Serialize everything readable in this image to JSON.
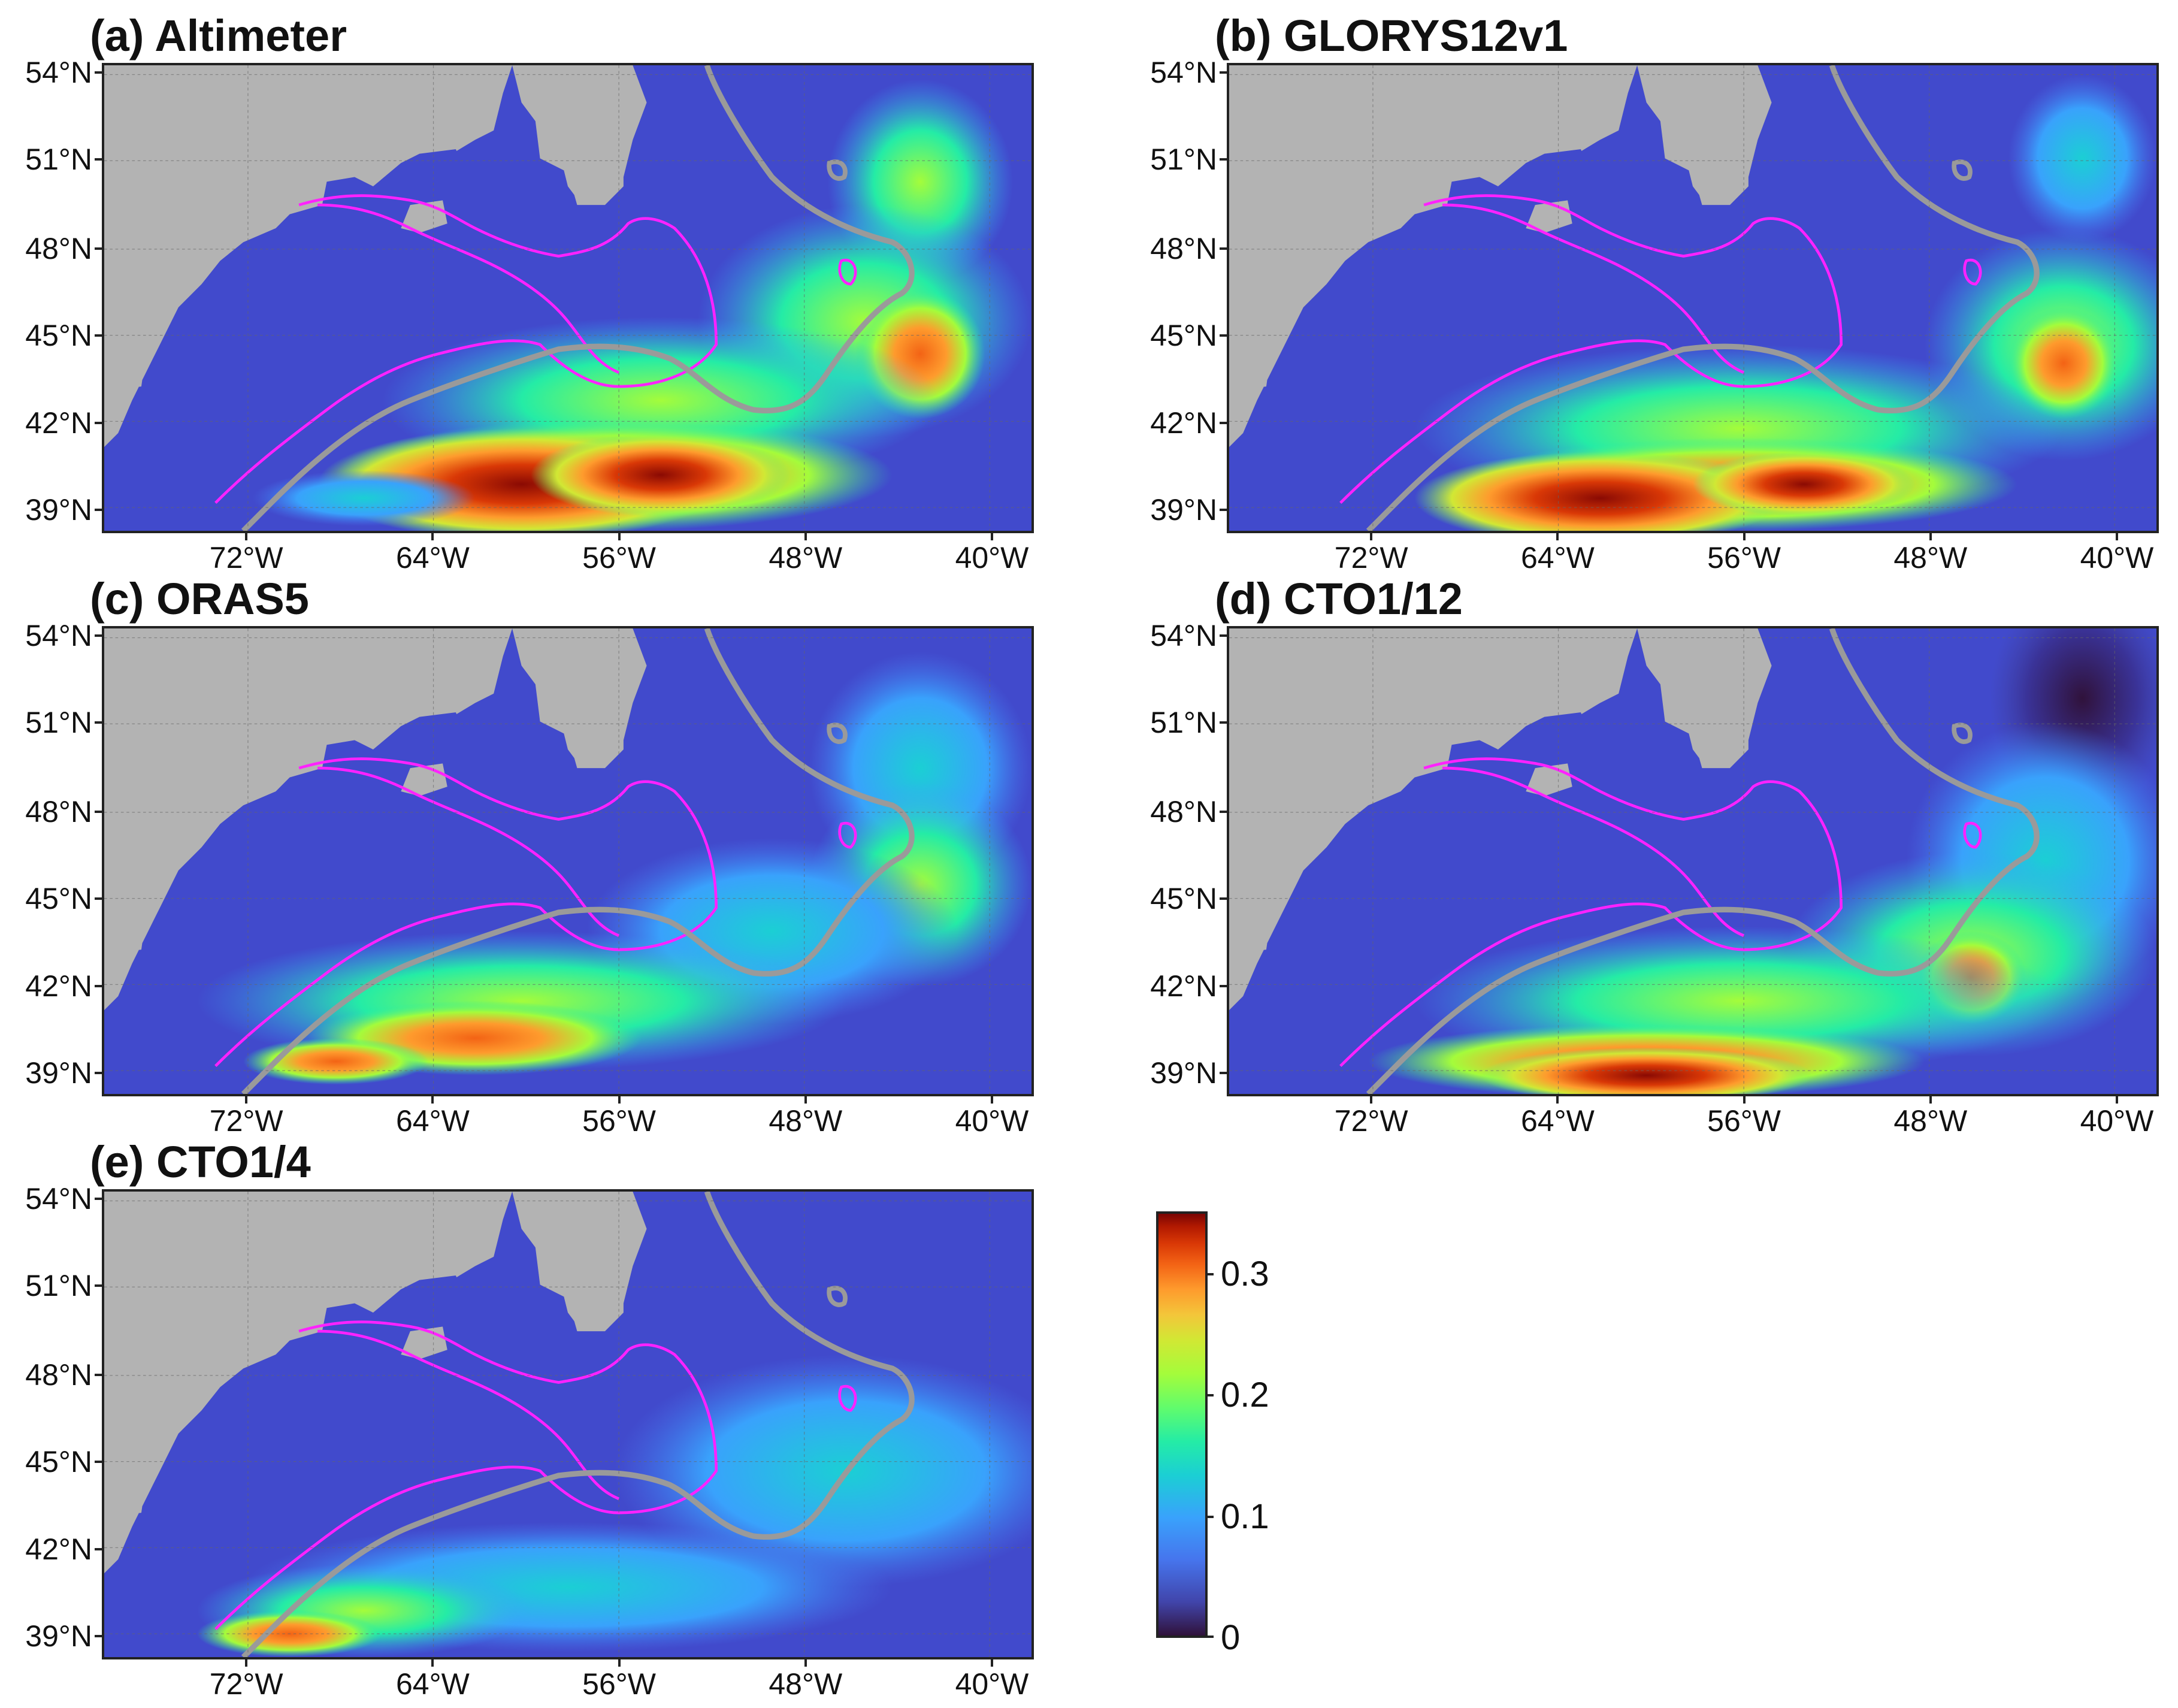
{
  "panels": [
    {
      "title": "(a) Altimeter"
    },
    {
      "title": "(b) GLORYS12v1"
    },
    {
      "title": "(c) ORAS5"
    },
    {
      "title": "(d) CTO1/12"
    },
    {
      "title": "(e) CTO1/4"
    }
  ],
  "lat_labels": [
    "54°N",
    "51°N",
    "48°N",
    "45°N",
    "42°N",
    "39°N"
  ],
  "lon_labels": [
    "72°W",
    "64°W",
    "56°W",
    "48°W",
    "40°W"
  ],
  "colorbar": {
    "labels": [
      "0.3",
      "0.2",
      "0.1",
      "0"
    ],
    "min": 0,
    "max": 0.35
  },
  "colors": {
    "land": "#b3b3b3",
    "isobath_shelf": "#ff22ff",
    "isobath_slope": "#9a9a9a",
    "low": "#3d44c8",
    "high": "#8a0a03"
  }
}
